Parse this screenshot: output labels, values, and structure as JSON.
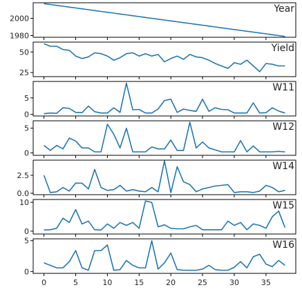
{
  "chart_data": {
    "type": "line",
    "x": [
      0,
      1,
      2,
      3,
      4,
      5,
      6,
      7,
      8,
      9,
      10,
      11,
      12,
      13,
      14,
      15,
      16,
      17,
      18,
      19,
      20,
      21,
      22,
      23,
      24,
      25,
      26,
      27,
      28,
      29,
      30,
      31,
      32,
      33,
      34,
      35,
      36,
      37,
      38
    ],
    "x_ticks": [
      0,
      5,
      10,
      15,
      20,
      25,
      30,
      35
    ],
    "series_color": "#1f77b4",
    "series": [
      {
        "name": "Year",
        "ylim": [
          1978,
          2018
        ],
        "yticks": [
          1980,
          2000
        ],
        "ytick_labels": [
          "1980",
          "2000"
        ],
        "values": [
          2017,
          2016,
          2015,
          2014,
          2013,
          2012,
          2011,
          2010,
          2009,
          2008,
          2007,
          2006,
          2005,
          2004,
          2003,
          2002,
          2001,
          2000,
          1999,
          1998,
          1997,
          1996,
          1995,
          1994,
          1993,
          1992,
          1991,
          1990,
          1989,
          1988,
          1987,
          1986,
          1985,
          1984,
          1983,
          1982,
          1981,
          1980,
          1979
        ]
      },
      {
        "name": "Yield",
        "ylim": [
          20,
          62
        ],
        "yticks": [
          25,
          50
        ],
        "ytick_labels": [
          "25",
          "50"
        ],
        "values": [
          60,
          57,
          57,
          53,
          52,
          45,
          42,
          44,
          49,
          48,
          45,
          40,
          43,
          48,
          49,
          45,
          48,
          45,
          47,
          38,
          42,
          45,
          41,
          47,
          44,
          43,
          40,
          36,
          33,
          30,
          37,
          35,
          40,
          33,
          26,
          36,
          35,
          33,
          33
        ]
      },
      {
        "name": "W11",
        "ylim": [
          -0.5,
          10
        ],
        "yticks": [
          0,
          5
        ],
        "ytick_labels": [
          "0",
          "5"
        ],
        "values": [
          0.2,
          0.4,
          0.3,
          2.0,
          1.8,
          0.6,
          0.5,
          2.5,
          0.8,
          0.4,
          0.4,
          2.0,
          0.6,
          9.5,
          1.4,
          1.5,
          0.4,
          0.4,
          1.6,
          4.2,
          4.6,
          0.6,
          1.6,
          1.2,
          0.9,
          4.6,
          0.9,
          2.0,
          1.5,
          1.4,
          0.4,
          0.4,
          0.4,
          3.5,
          0.4,
          0.5,
          2.0,
          1.0,
          0.4
        ]
      },
      {
        "name": "W12",
        "ylim": [
          -0.5,
          6.5
        ],
        "yticks": [
          0,
          5
        ],
        "ytick_labels": [
          "0",
          "5"
        ],
        "values": [
          1.5,
          0.5,
          1.5,
          0.8,
          3.0,
          2.4,
          1.0,
          1.0,
          0.2,
          0.2,
          5.8,
          3.8,
          1.0,
          5.0,
          0.2,
          0.2,
          0.2,
          1.2,
          0.8,
          0.8,
          2.6,
          0.5,
          0.5,
          6.2,
          1.0,
          2.2,
          1.0,
          0.6,
          0.2,
          0.2,
          0.2,
          2.5,
          0.2,
          1.4,
          0.2,
          0.2,
          0.2,
          0.3,
          0.2
        ]
      },
      {
        "name": "W14",
        "ylim": [
          -0.2,
          4.6
        ],
        "yticks": [
          0,
          2.5
        ],
        "ytick_labels": [
          "0.0",
          "2.5"
        ],
        "values": [
          2.5,
          0.1,
          0.2,
          0.8,
          0.3,
          1.4,
          1.4,
          0.6,
          3.3,
          0.8,
          0.4,
          0.5,
          1.1,
          0.3,
          0.5,
          0.3,
          0.2,
          0.8,
          0.2,
          4.5,
          0.1,
          3.7,
          1.6,
          1.2,
          0.2,
          0.6,
          0.8,
          1.0,
          1.1,
          1.2,
          0.1,
          0.2,
          0.2,
          0.1,
          0.3,
          1.1,
          0.8,
          0.2,
          0.4
        ]
      },
      {
        "name": "W15",
        "ylim": [
          -1,
          11
        ],
        "yticks": [
          0,
          10
        ],
        "ytick_labels": [
          "0",
          "10"
        ],
        "values": [
          0.4,
          0.5,
          1.0,
          4.5,
          3.0,
          7.5,
          2.5,
          3.5,
          0.5,
          0.4,
          2.5,
          1.0,
          3.0,
          2.0,
          3.0,
          1.0,
          10.5,
          10.0,
          1.5,
          2.2,
          1.0,
          0.8,
          0.8,
          1.5,
          2.0,
          0.5,
          0.5,
          0.5,
          0.5,
          3.5,
          2.0,
          3.0,
          0.5,
          2.5,
          2.0,
          1.0,
          5.0,
          7.0,
          1.2
        ]
      },
      {
        "name": "W16",
        "ylim": [
          -0.3,
          5.3
        ],
        "yticks": [
          0,
          5
        ],
        "ytick_labels": [
          "0",
          "5"
        ],
        "values": [
          1.4,
          1.0,
          0.6,
          0.6,
          1.6,
          3.4,
          0.6,
          0.2,
          3.4,
          3.4,
          4.3,
          0.2,
          0.3,
          1.8,
          1.0,
          0.6,
          0.6,
          5.0,
          0.4,
          1.4,
          3.0,
          0.3,
          0.2,
          0.2,
          0.2,
          0.4,
          1.0,
          0.3,
          0.2,
          0.2,
          0.7,
          1.6,
          0.6,
          2.4,
          2.8,
          1.2,
          0.8,
          1.8,
          1.0
        ]
      }
    ]
  }
}
